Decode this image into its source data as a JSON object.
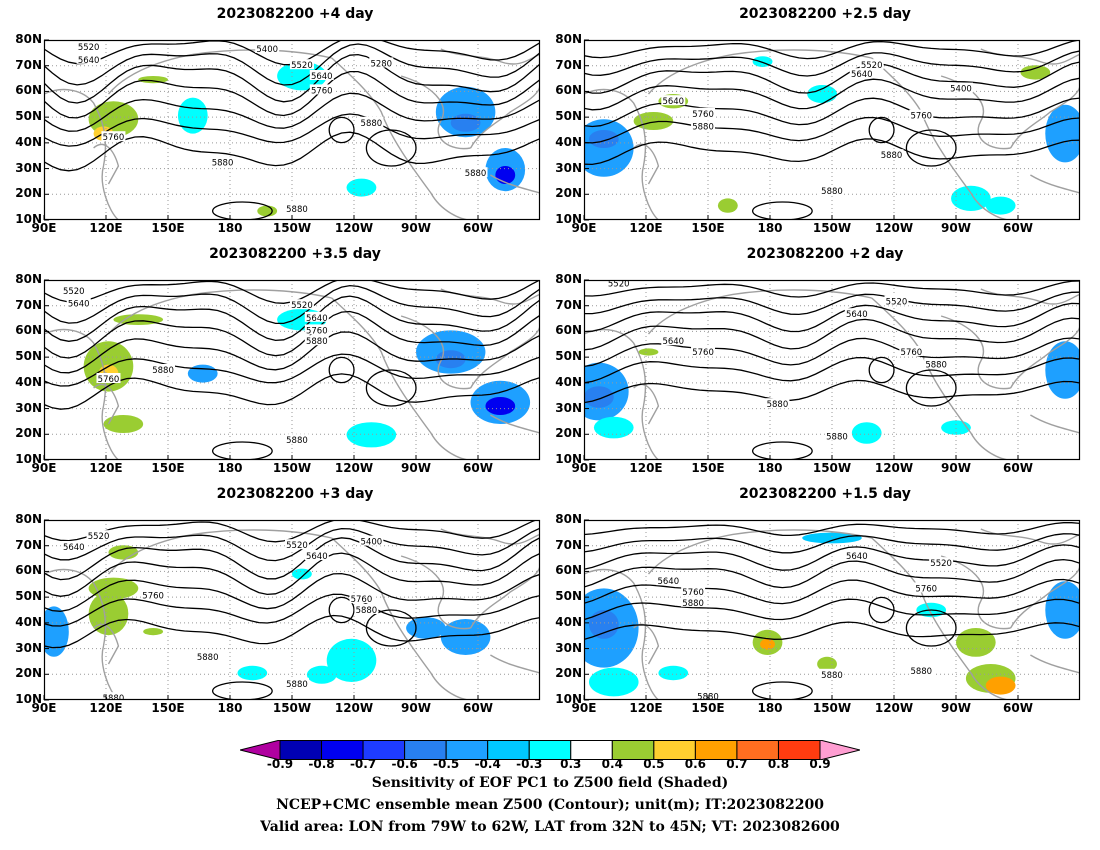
{
  "panels": [
    {
      "title": "2023082200  +4 day"
    },
    {
      "title": "2023082200  +2.5 day"
    },
    {
      "title": "2023082200  +3.5 day"
    },
    {
      "title": "2023082200  +2 day"
    },
    {
      "title": "2023082200  +3 day"
    },
    {
      "title": "2023082200  +1.5 day"
    }
  ],
  "map_axes": {
    "lat_labels": [
      "80N",
      "70N",
      "60N",
      "50N",
      "40N",
      "30N",
      "20N",
      "10N"
    ],
    "lon_labels": [
      "90E",
      "120E",
      "150E",
      "180",
      "150W",
      "120W",
      "90W",
      "60W"
    ],
    "lat_range": [
      10,
      80
    ],
    "lon_range_east": [
      90,
      330
    ]
  },
  "contour_labels": {
    "panel0": [
      "5520",
      "5640",
      "5760",
      "5880",
      "5400",
      "5520",
      "5640",
      "5760",
      "5280",
      "5880",
      "5880",
      "5880"
    ],
    "panel1": [
      "5640",
      "5760",
      "5880",
      "5520",
      "5640",
      "5400",
      "5760",
      "5880",
      "5880"
    ],
    "panel2": [
      "5520",
      "5640",
      "5760",
      "5880",
      "5520",
      "5640",
      "5760",
      "5880",
      "5880"
    ],
    "panel3": [
      "5520",
      "5640",
      "5760",
      "5520",
      "5640",
      "5760",
      "5880",
      "5880",
      "5880"
    ],
    "panel4": [
      "5640",
      "5520",
      "5760",
      "5520",
      "5640",
      "5400",
      "5760",
      "5880",
      "5880",
      "5880",
      "5880"
    ],
    "panel5": [
      "5640",
      "5760",
      "5880",
      "5640",
      "5520",
      "5760",
      "5880",
      "5880",
      "5880"
    ]
  },
  "colorbar": {
    "ticks": [
      "-0.9",
      "-0.8",
      "-0.7",
      "-0.6",
      "-0.5",
      "-0.4",
      "-0.3",
      "0.3",
      "0.4",
      "0.5",
      "0.6",
      "0.7",
      "0.8",
      "0.9"
    ],
    "colors": [
      "#0000b4",
      "#0000f0",
      "#1e3cff",
      "#2880f0",
      "#1ea0ff",
      "#00c8ff",
      "#00ffff",
      "#ffffff",
      "#9acd32",
      "#ffd030",
      "#ffa000",
      "#ff6e20",
      "#ff3c10",
      "#ff0000"
    ],
    "low_extend_color": "#b000a0",
    "high_extend_color": "#ff9ed2"
  },
  "captions": {
    "line1": "Sensitivity of EOF PC1 to Z500 field (Shaded)",
    "line2": "NCEP+CMC ensemble mean Z500 (Contour); unit(m); IT:2023082200",
    "line3": "Valid area: LON from 79W to 62W, LAT from 32N to 45N; VT: 2023082600"
  }
}
